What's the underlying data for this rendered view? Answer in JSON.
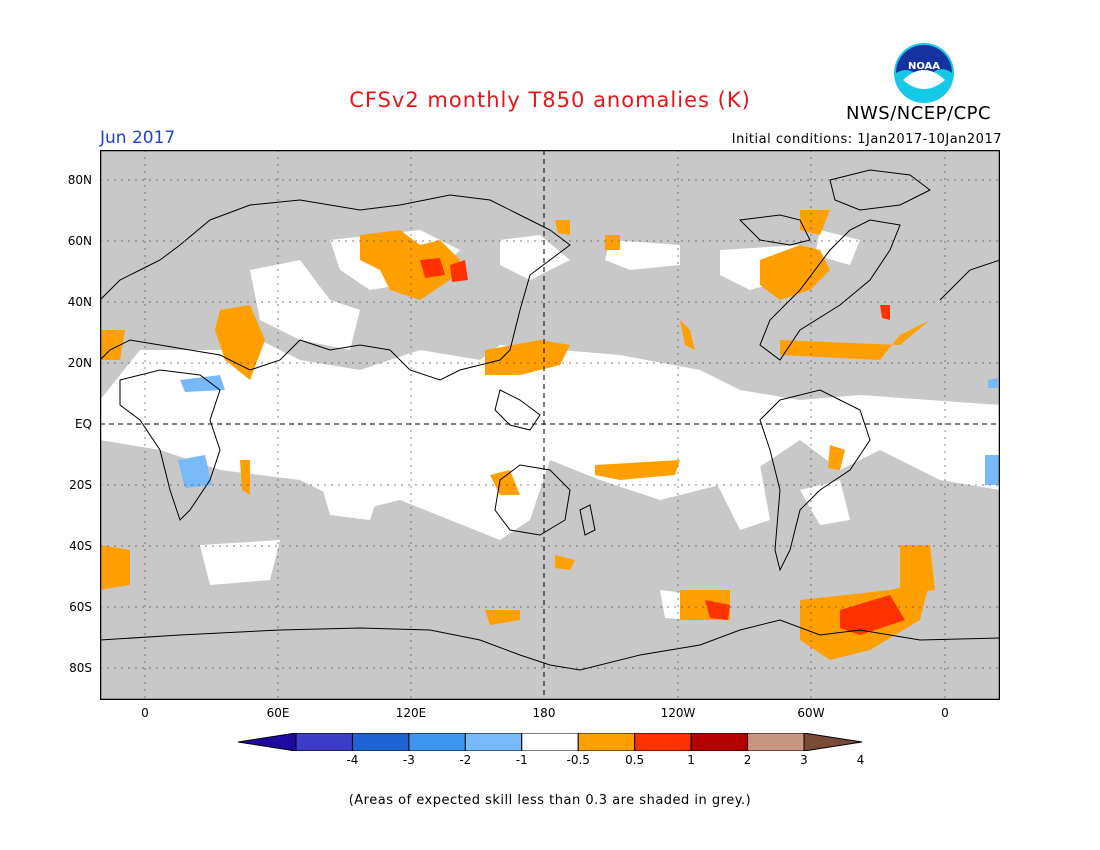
{
  "title": "CFSv2 monthly T850 anomalies (K)",
  "period": "Jun 2017",
  "initial_conditions": "Initial conditions: 1Jan2017-10Jan2017",
  "agency": "NWS/NCEP/CPC",
  "logo_text": "NOAA",
  "lat_labels": [
    "80N",
    "60N",
    "40N",
    "20N",
    "EQ",
    "20S",
    "40S",
    "60S",
    "80S"
  ],
  "lon_labels": [
    "0",
    "60E",
    "120E",
    "180",
    "120W",
    "60W",
    "0"
  ],
  "colorbar": {
    "colors": [
      "#1e0aa0",
      "#3c3cc8",
      "#1e64d2",
      "#3c96f0",
      "#78b9fa",
      "#ffffff",
      "#ffa000",
      "#ff3200",
      "#b40000",
      "#c89680",
      "#7a4a38"
    ],
    "labels": [
      "-4",
      "-3",
      "-2",
      "-1",
      "-0.5",
      "0.5",
      "1",
      "2",
      "3",
      "4"
    ]
  },
  "colors": {
    "title": "#e8141c",
    "period": "#1f3fd6",
    "grey_skill": "#c8c8c8",
    "ocean": "#c8c8c8"
  },
  "footnote": "(Areas of expected skill less than 0.3 are shaded in grey.)"
}
